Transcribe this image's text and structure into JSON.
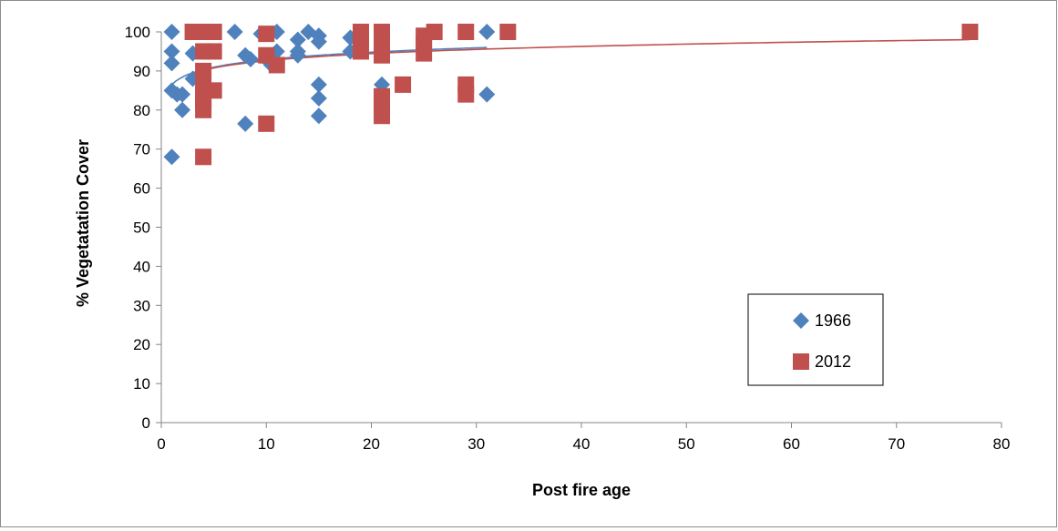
{
  "chart_data": {
    "type": "scatter",
    "title": "",
    "xlabel": "Post fire age",
    "ylabel": "% Vegetatation Cover",
    "xlim": [
      0,
      80
    ],
    "ylim": [
      0,
      100
    ],
    "xticks": [
      0,
      10,
      20,
      30,
      40,
      50,
      60,
      70,
      80
    ],
    "yticks": [
      0,
      10,
      20,
      30,
      40,
      50,
      60,
      70,
      80,
      90,
      100
    ],
    "grid": false,
    "legend_position": "right",
    "series": [
      {
        "name": "1966",
        "marker": "diamond",
        "color": "#4f81bd",
        "points": [
          [
            1,
            100
          ],
          [
            1,
            95
          ],
          [
            1,
            92
          ],
          [
            1,
            85
          ],
          [
            1,
            68
          ],
          [
            1.5,
            84
          ],
          [
            2,
            84
          ],
          [
            2,
            80
          ],
          [
            3,
            94.5
          ],
          [
            3,
            88
          ],
          [
            4,
            100
          ],
          [
            7,
            100
          ],
          [
            8,
            94
          ],
          [
            8,
            76.5
          ],
          [
            8.5,
            93
          ],
          [
            9.5,
            99.5
          ],
          [
            10,
            93
          ],
          [
            10.5,
            91.5
          ],
          [
            11,
            100
          ],
          [
            11,
            95
          ],
          [
            13,
            98
          ],
          [
            13,
            95
          ],
          [
            13,
            94
          ],
          [
            14,
            100
          ],
          [
            15,
            99
          ],
          [
            15,
            97.5
          ],
          [
            15,
            86.5
          ],
          [
            15,
            83
          ],
          [
            15,
            78.5
          ],
          [
            18,
            98.5
          ],
          [
            18,
            95
          ],
          [
            21,
            86.5
          ],
          [
            31,
            100
          ],
          [
            31,
            84
          ]
        ],
        "trend": {
          "type": "logarithmic",
          "a": 86.5,
          "b": 2.77,
          "x_range": [
            1,
            31
          ]
        }
      },
      {
        "name": "2012",
        "marker": "square",
        "color": "#c0504d",
        "points": [
          [
            3,
            100
          ],
          [
            4,
            100
          ],
          [
            4,
            95
          ],
          [
            4,
            90
          ],
          [
            4,
            86
          ],
          [
            4,
            84
          ],
          [
            4,
            82
          ],
          [
            4,
            80
          ],
          [
            4,
            68
          ],
          [
            5,
            100
          ],
          [
            5,
            95
          ],
          [
            5,
            85
          ],
          [
            10,
            99.5
          ],
          [
            10,
            94
          ],
          [
            10,
            76.5
          ],
          [
            11,
            91.5
          ],
          [
            19,
            100
          ],
          [
            19,
            98
          ],
          [
            19,
            95
          ],
          [
            21,
            100
          ],
          [
            21,
            97
          ],
          [
            21,
            94
          ],
          [
            21,
            83.5
          ],
          [
            21,
            80.5
          ],
          [
            21,
            78.5
          ],
          [
            23,
            86.5
          ],
          [
            25,
            99
          ],
          [
            25,
            97
          ],
          [
            25,
            94.5
          ],
          [
            26,
            100
          ],
          [
            29,
            100
          ],
          [
            29,
            86.5
          ],
          [
            29,
            84
          ],
          [
            33,
            100
          ],
          [
            77,
            100
          ]
        ],
        "trend": {
          "type": "logarithmic",
          "a": 86.5,
          "b": 2.65,
          "x_range": [
            4,
            77
          ]
        }
      }
    ]
  }
}
